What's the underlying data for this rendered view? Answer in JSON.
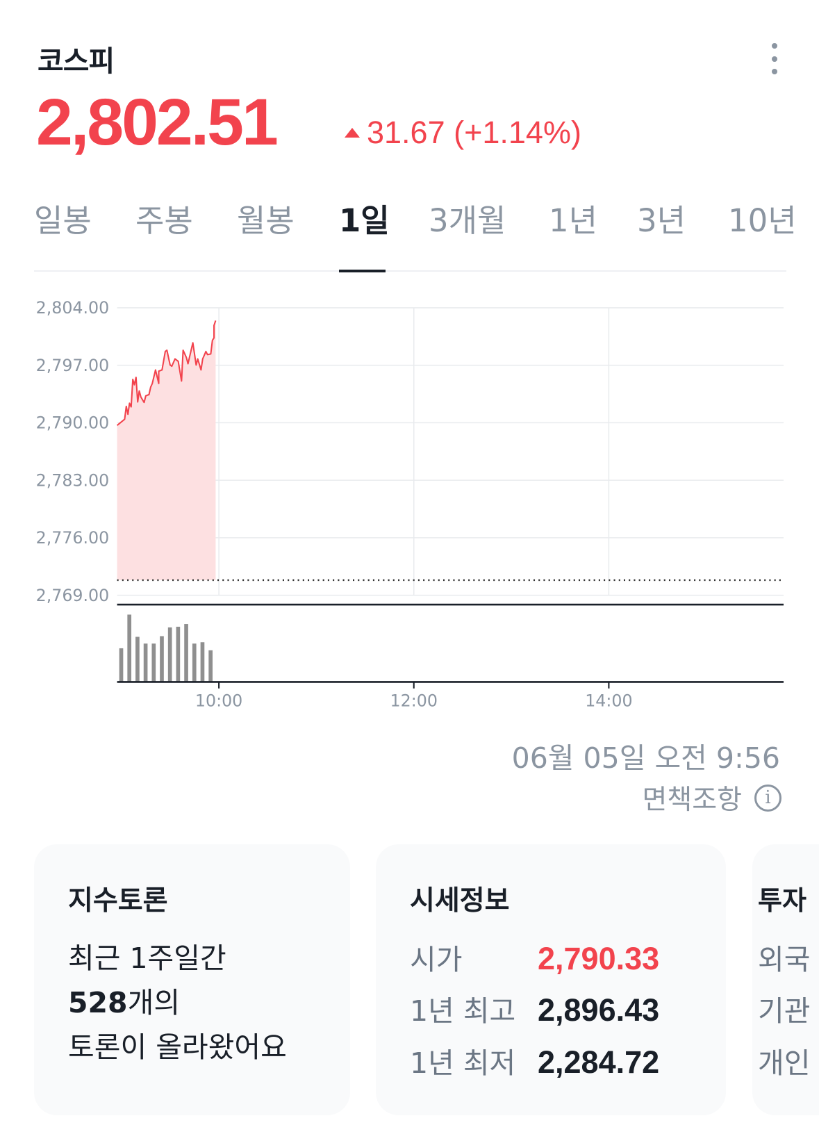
{
  "header": {
    "title": "코스피",
    "price": "2,802.51",
    "change": "31.67 (+1.14%)",
    "direction": "up",
    "up_color": "#f2434d"
  },
  "tabs": [
    {
      "label": "일봉"
    },
    {
      "label": "주봉"
    },
    {
      "label": "월봉"
    },
    {
      "label": "1일",
      "active": true
    },
    {
      "label": "3개월"
    },
    {
      "label": "1년"
    },
    {
      "label": "3년"
    },
    {
      "label": "10년"
    }
  ],
  "chart_data": {
    "type": "area",
    "ylim": [
      2769,
      2804
    ],
    "y_ticks": [
      "2,804.00",
      "2,797.00",
      "2,790.00",
      "2,783.00",
      "2,776.00",
      "2,769.00"
    ],
    "x_ticks": [
      "10:00",
      "12:00",
      "14:00"
    ],
    "previous_close": 2770.84,
    "line_color": "#f2434d",
    "series": [
      {
        "x": [
          "09:00",
          "09:02",
          "09:03",
          "09:04",
          "09:05",
          "09:06",
          "09:07",
          "09:08",
          "09:09",
          "09:10",
          "09:11",
          "09:12",
          "09:14",
          "09:15",
          "09:17",
          "09:18",
          "09:19",
          "09:21",
          "09:23",
          "09:23",
          "09:25",
          "09:27",
          "09:28",
          "09:30",
          "09:31",
          "09:33",
          "09:35",
          "09:37",
          "09:38",
          "09:40",
          "09:41",
          "09:44",
          "09:46",
          "09:47",
          "09:49",
          "09:50",
          "09:52",
          "09:53",
          "09:55",
          "09:56",
          "09:57",
          "09:57",
          "09:58"
        ],
        "y": [
          2789.68,
          2790.43,
          2792.0,
          2791.03,
          2792.38,
          2791.93,
          2795.29,
          2794.63,
          2795.53,
          2792.53,
          2793.88,
          2793.13,
          2792.47,
          2793.28,
          2793.43,
          2794.33,
          2794.78,
          2796.43,
          2794.78,
          2796.28,
          2796.43,
          2798.68,
          2798.83,
          2797.03,
          2796.88,
          2797.78,
          2797.48,
          2795.08,
          2798.83,
          2797.93,
          2797.18,
          2799.74,
          2797.03,
          2797.78,
          2796.43,
          2797.78,
          2798.68,
          2798.29,
          2798.38,
          2800.04,
          2800.34,
          2801.84,
          2802.44
        ]
      }
    ],
    "volume": {
      "x": [
        "09:00",
        "09:05",
        "09:10",
        "09:15",
        "09:20",
        "09:25",
        "09:30",
        "09:35",
        "09:40",
        "09:45",
        "09:50",
        "09:55"
      ],
      "values": [
        50,
        100,
        67,
        57,
        57,
        68,
        81,
        82,
        86,
        57,
        59,
        47
      ]
    }
  },
  "timestamp": "06월 05일 오전 9:56",
  "disclaimer": "면책조항",
  "cards": {
    "discussion": {
      "title": "지수토론",
      "line1": "최근 1주일간",
      "count": "528",
      "count_suffix": "개의",
      "line3": "토론이 올라왔어요"
    },
    "quote": {
      "title": "시세정보",
      "rows": [
        {
          "label": "시가",
          "value": "2,790.33",
          "color": "#f2434d"
        },
        {
          "label": "1년 최고",
          "value": "2,896.43"
        },
        {
          "label": "1년 최저",
          "value": "2,284.72"
        }
      ]
    },
    "investors": {
      "title": "투자",
      "rows": [
        "외국",
        "기관",
        "개인"
      ]
    }
  }
}
